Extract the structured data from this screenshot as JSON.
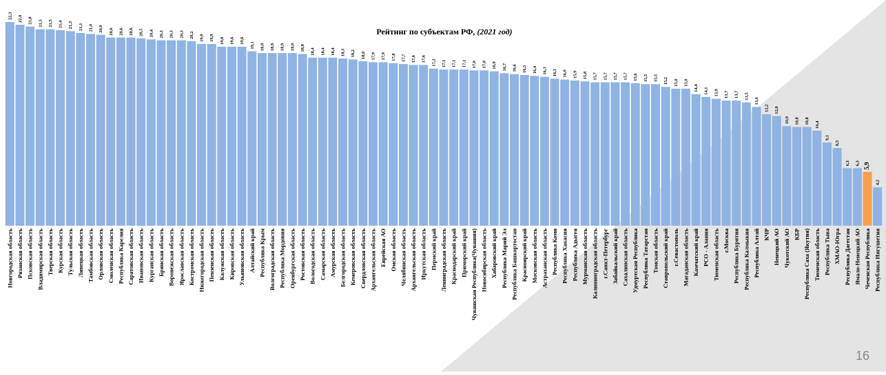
{
  "page_number": "16",
  "colors": {
    "bar": "#8FB4E3",
    "highlight": "#F9A04E",
    "background_shape": "#E4E4E4"
  },
  "chart_data": {
    "type": "bar",
    "title_main": "Рейтинг по субъектам РФ, ",
    "title_year": "(2021 год)",
    "xlabel": "",
    "ylabel": "",
    "ylim": [
      0,
      22.3
    ],
    "grid": false,
    "legend": "none",
    "highlight_category": "Чеченская Республика",
    "categories": [
      "Новгородская область",
      "Рязанская область",
      "Псковская область",
      "Владимирская область",
      "Тверская область",
      "Курская область",
      "Тульская область",
      "Липецкая область",
      "Тамбовская область",
      "Орловская область",
      "Смоленская область",
      "Республика Карелия",
      "Саратовская область",
      "Ивановская область",
      "Курганская область",
      "Брянская область",
      "Воронежская область",
      "Ярославская область",
      "Костромская область",
      "Нижегородская область",
      "Пензенская область",
      "Калужская область",
      "Кировская область",
      "Ульяновская область",
      "Алтайский край",
      "Республика Крым",
      "Волгоградская область",
      "Республика Мордовия",
      "Оренбургская область",
      "Ростовская область",
      "Вологодская область",
      "Самарская область",
      "Амурская область",
      "Белгородская область",
      "Кемеровская область",
      "Свердловская область",
      "Архангельская область",
      "Еврейская АО",
      "Омская область",
      "Челябинская область",
      "Архангельская область",
      "Иркутская область",
      "Пермский край",
      "Ленинградская область",
      "Краснодарский край",
      "Приморский край",
      "Чувашская Республика(Чувашия)",
      "Новосибирская область",
      "Хабаровский край",
      "Республика Марий Эл",
      "Республика Башкортостан",
      "Красноярский край",
      "Московская область",
      "Астраханская область",
      "Республика Коми",
      "Республика Хакасия",
      "Республика Адыгея",
      "Мурманская область",
      "Калининградская область",
      "г.Санкт-Петербург",
      "Забайкальский край",
      "Сахалинская область",
      "Удмуртская Республика",
      "Республика Татарстан",
      "Томская область",
      "Ставропольский край",
      "г.Севастополь",
      "Магаданская область",
      "Камчатский край",
      "РСО - Алания",
      "Тюменская область",
      "г.Москва",
      "Республика Бурятия",
      "Республика Калмыкия",
      "Республика Алтай",
      "КЧР",
      "Ненецкий АО",
      "Чукотский АО",
      "КБР",
      "Республика Саха (Якутия)",
      "Тюменская область",
      "Республика Тыва",
      "ХМАО-Югра",
      "Республика Дагестан",
      "Ямало-Ненецкий АО",
      "Чеченская Республика",
      "Республика Ингушетия"
    ],
    "values": [
      22.3,
      22.0,
      21.8,
      21.5,
      21.5,
      21.4,
      21.3,
      21.1,
      21.0,
      20.9,
      20.6,
      20.6,
      20.6,
      20.5,
      20.4,
      20.3,
      20.3,
      20.3,
      20.2,
      19.9,
      19.9,
      19.6,
      19.6,
      19.6,
      19.1,
      18.9,
      18.9,
      18.9,
      18.9,
      18.8,
      18.4,
      18.4,
      18.4,
      18.3,
      18.2,
      18.0,
      17.9,
      17.9,
      17.8,
      17.7,
      17.6,
      17.6,
      17.2,
      17.1,
      17.1,
      17.1,
      17.0,
      17.0,
      16.9,
      16.7,
      16.6,
      16.5,
      16.4,
      16.3,
      16.1,
      16.0,
      15.9,
      15.8,
      15.7,
      15.7,
      15.7,
      15.7,
      15.6,
      15.5,
      15.5,
      15.2,
      15.0,
      15.0,
      14.4,
      14.1,
      13.9,
      13.7,
      13.7,
      13.5,
      13.0,
      12.2,
      12.0,
      10.9,
      10.8,
      10.8,
      10.4,
      9.1,
      8.5,
      6.3,
      6.3,
      5.9,
      4.2
    ],
    "value_labels": [
      "22,3",
      "22,0",
      "21,8",
      "21,5",
      "21,5",
      "21,4",
      "21,3",
      "21,1",
      "21,0",
      "20,9",
      "20,6",
      "20,6",
      "20,6",
      "20,5",
      "20,4",
      "20,3",
      "20,3",
      "20,3",
      "20,2",
      "19,9",
      "19,9",
      "19,6",
      "19,6",
      "19,6",
      "19,1",
      "18,9",
      "18,9",
      "18,9",
      "18,9",
      "18,8",
      "18,4",
      "18,4",
      "18,4",
      "18,3",
      "18,2",
      "18,0",
      "17,9",
      "17,9",
      "17,8",
      "17,7",
      "17,6",
      "17,6",
      "17,2",
      "17,1",
      "17,1",
      "17,1",
      "17,0",
      "17,0",
      "16,9",
      "16,7",
      "16,6",
      "16,5",
      "16,4",
      "16,3",
      "16,1",
      "16,0",
      "15,9",
      "15,8",
      "15,7",
      "15,7",
      "15,7",
      "15,7",
      "15,6",
      "15,5",
      "15,5",
      "15,2",
      "15,0",
      "15,0",
      "14,4",
      "14,1",
      "13,9",
      "13,7",
      "13,7",
      "13,5",
      "13,0",
      "12,2",
      "12,0",
      "10,9",
      "10,8",
      "10,8",
      "10,4",
      "9,1",
      "8,5",
      "6,3",
      "6,3",
      "5,9",
      "4,2"
    ]
  }
}
